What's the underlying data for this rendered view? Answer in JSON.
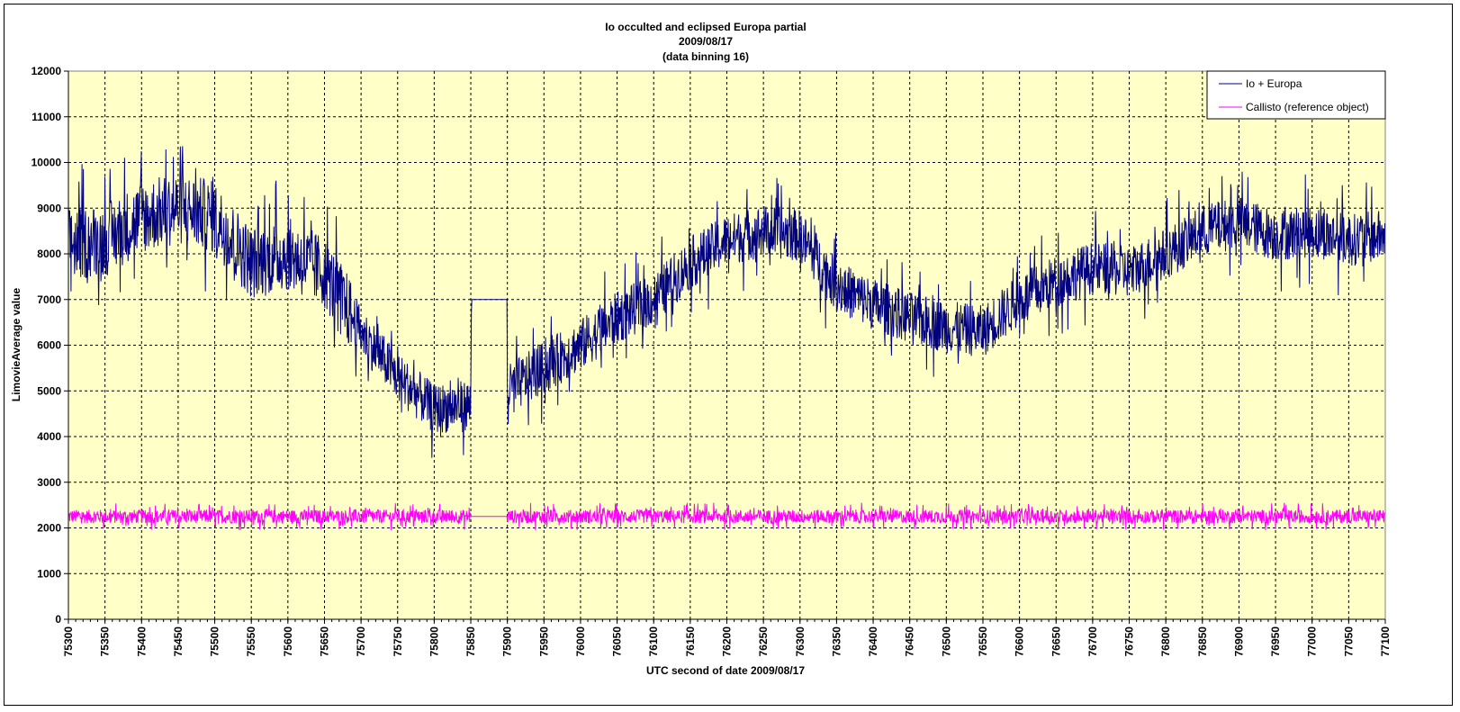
{
  "chart_data": {
    "type": "line",
    "title": "Io occulted and eclipsed Europa partial",
    "subtitle": [
      "2009/08/17",
      "(data binning 16)"
    ],
    "xlabel": "UTC second of date 2009/08/17",
    "ylabel": "LimovieAverage value",
    "xlim": [
      75300,
      77100
    ],
    "ylim": [
      0,
      12000
    ],
    "x_ticks": [
      75300,
      75350,
      75400,
      75450,
      75500,
      75550,
      75600,
      75650,
      75700,
      75750,
      75800,
      75850,
      75900,
      75950,
      76000,
      76050,
      76100,
      76150,
      76200,
      76250,
      76300,
      76350,
      76400,
      76450,
      76500,
      76550,
      76600,
      76650,
      76700,
      76750,
      76800,
      76850,
      76900,
      76950,
      77000,
      77050,
      77100
    ],
    "y_ticks": [
      0,
      1000,
      2000,
      3000,
      4000,
      5000,
      6000,
      7000,
      8000,
      9000,
      10000,
      11000,
      12000
    ],
    "grid": true,
    "legend_position": "top-right",
    "plot_background": "#ffffc8",
    "series": [
      {
        "name": "Io + Europa",
        "color": "#000080",
        "x": [
          75300,
          75350,
          75400,
          75450,
          75500,
          75550,
          75600,
          75650,
          75700,
          75750,
          75800,
          75850,
          75851,
          75900,
          75950,
          76000,
          76050,
          76100,
          76150,
          76200,
          76250,
          76300,
          76350,
          76400,
          76450,
          76500,
          76550,
          76600,
          76650,
          76700,
          76750,
          76800,
          76850,
          76900,
          76950,
          77000,
          77050,
          77100
        ],
        "y": [
          8200,
          8300,
          8800,
          9000,
          8800,
          7800,
          8000,
          7600,
          6300,
          5300,
          4600,
          4700,
          7000,
          5000,
          5500,
          6000,
          6600,
          7000,
          7800,
          8300,
          8500,
          8400,
          7300,
          6900,
          6600,
          6400,
          6300,
          7000,
          7400,
          7700,
          7600,
          8000,
          8500,
          8700,
          8400,
          8500,
          8300,
          8400
        ],
        "noise_amplitude": 1600
      },
      {
        "name": "Callisto (reference object)",
        "color": "#ff00ff",
        "x": [
          75300,
          75850,
          75851,
          75900,
          75901,
          77100
        ],
        "y": [
          2250,
          2250,
          2250,
          2250,
          2250,
          2250
        ],
        "noise_amplitude": 300
      }
    ]
  }
}
